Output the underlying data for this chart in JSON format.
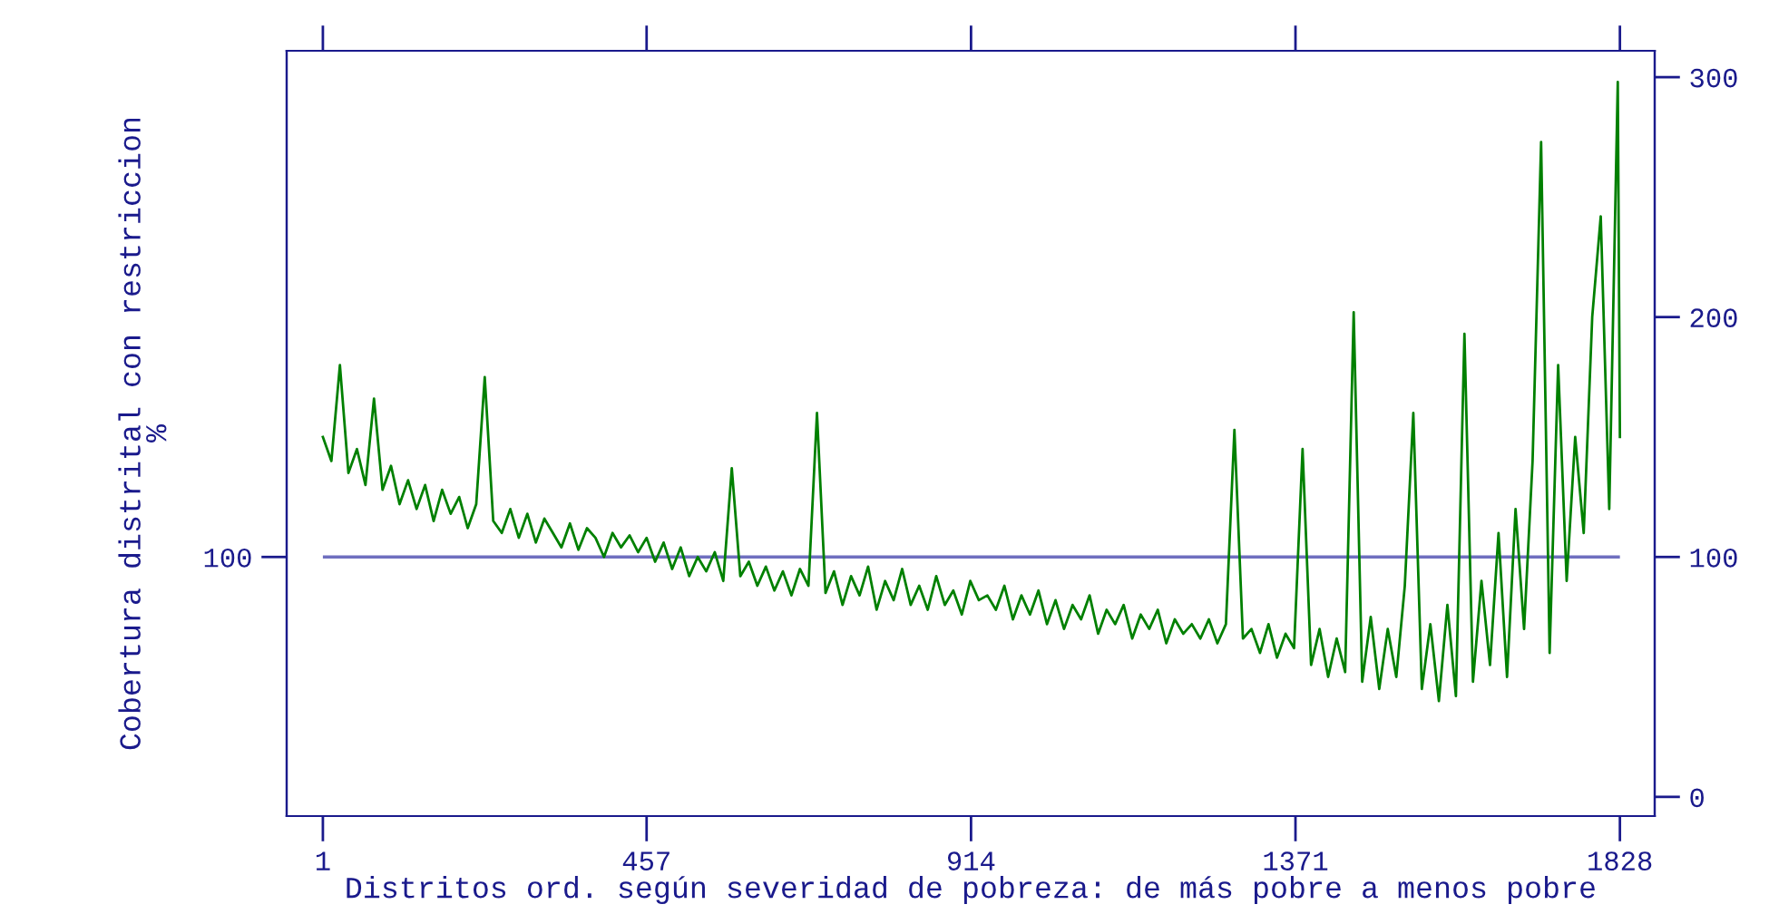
{
  "chart_data": {
    "type": "line",
    "xlabel": "Distritos ord. según severidad de pobreza: de más pobre a menos pobre",
    "ylabel": "Cobertura distrital con restriccion\n%",
    "x": [
      1,
      13,
      25,
      37,
      49,
      61,
      73,
      85,
      97,
      109,
      121,
      133,
      145,
      157,
      169,
      181,
      193,
      205,
      217,
      229,
      241,
      253,
      265,
      277,
      289,
      301,
      313,
      325,
      337,
      349,
      361,
      373,
      385,
      397,
      409,
      421,
      433,
      445,
      457,
      469,
      481,
      493,
      505,
      517,
      529,
      541,
      553,
      565,
      577,
      589,
      601,
      613,
      625,
      637,
      649,
      661,
      673,
      685,
      697,
      709,
      721,
      733,
      745,
      757,
      769,
      781,
      793,
      805,
      817,
      829,
      841,
      853,
      865,
      877,
      889,
      901,
      913,
      925,
      937,
      949,
      961,
      973,
      985,
      997,
      1009,
      1021,
      1033,
      1045,
      1057,
      1069,
      1081,
      1093,
      1105,
      1117,
      1129,
      1141,
      1153,
      1165,
      1177,
      1189,
      1201,
      1213,
      1225,
      1237,
      1249,
      1261,
      1273,
      1285,
      1297,
      1309,
      1321,
      1333,
      1345,
      1357,
      1369,
      1381,
      1393,
      1405,
      1417,
      1429,
      1441,
      1453,
      1465,
      1477,
      1489,
      1501,
      1513,
      1525,
      1537,
      1549,
      1561,
      1573,
      1585,
      1597,
      1609,
      1621,
      1633,
      1645,
      1657,
      1669,
      1681,
      1693,
      1705,
      1717,
      1729,
      1741,
      1753,
      1765,
      1777,
      1789,
      1801,
      1813,
      1825,
      1828
    ],
    "series": [
      {
        "color": "#008000",
        "values": [
          150,
          140,
          180,
          135,
          145,
          130,
          166,
          128,
          138,
          122,
          132,
          120,
          130,
          115,
          128,
          118,
          125,
          112,
          122,
          175,
          115,
          110,
          120,
          108,
          118,
          106,
          116,
          110,
          104,
          114,
          103,
          112,
          108,
          100,
          110,
          104,
          109,
          102,
          108,
          98,
          106,
          95,
          104,
          92,
          100,
          94,
          102,
          90,
          137,
          92,
          98,
          88,
          96,
          86,
          94,
          84,
          95,
          88,
          160,
          85,
          94,
          80,
          92,
          84,
          96,
          78,
          90,
          82,
          95,
          80,
          88,
          78,
          92,
          80,
          86,
          76,
          90,
          82,
          84,
          78,
          88,
          74,
          84,
          76,
          86,
          72,
          82,
          70,
          80,
          74,
          84,
          68,
          78,
          72,
          80,
          66,
          76,
          70,
          78,
          64,
          74,
          68,
          72,
          66,
          74,
          64,
          72,
          153,
          66,
          70,
          60,
          72,
          58,
          68,
          62,
          145,
          55,
          70,
          50,
          66,
          52,
          202,
          48,
          75,
          45,
          70,
          50,
          88,
          160,
          45,
          72,
          40,
          80,
          42,
          193,
          48,
          90,
          55,
          110,
          50,
          120,
          70,
          140,
          273,
          60,
          180,
          90,
          150,
          110,
          200,
          242,
          120,
          298,
          150
        ]
      }
    ],
    "xlim": [
      -50,
      1877
    ],
    "xticks": [
      1,
      457,
      914,
      1371,
      1828
    ],
    "ylim": [
      -8,
      311
    ],
    "yticks": [
      0,
      100,
      200,
      300
    ],
    "ref_lines": [
      {
        "axis": "y",
        "value": 100,
        "label": "100",
        "color": "#6f6fbf"
      }
    ]
  }
}
